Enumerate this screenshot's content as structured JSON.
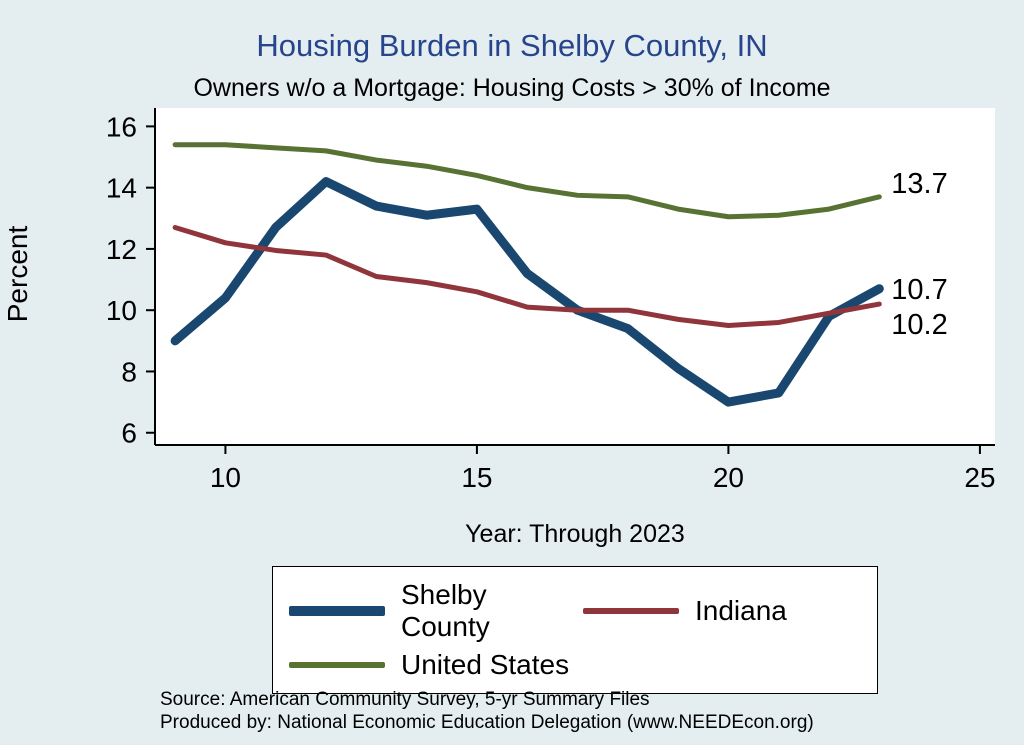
{
  "chart_data": {
    "type": "line",
    "title": "Housing Burden in Shelby County, IN",
    "subtitle": "Owners w/o a Mortgage: Housing Costs > 30% of Income",
    "xlabel": "Year: Through 2023",
    "ylabel": "Percent",
    "x": [
      9,
      10,
      11,
      12,
      13,
      14,
      15,
      16,
      17,
      18,
      19,
      20,
      21,
      22,
      23
    ],
    "series": [
      {
        "name": "Shelby County",
        "color": "#1a476f",
        "width": 9,
        "values": [
          9.0,
          10.4,
          12.7,
          14.2,
          13.4,
          13.1,
          13.3,
          11.2,
          10.0,
          9.4,
          8.1,
          7.0,
          7.3,
          9.8,
          10.7
        ],
        "end_label": "10.7"
      },
      {
        "name": "Indiana",
        "color": "#90353b",
        "width": 5,
        "values": [
          12.7,
          12.2,
          11.95,
          11.8,
          11.1,
          10.9,
          10.6,
          10.1,
          10.0,
          10.0,
          9.7,
          9.5,
          9.6,
          9.9,
          10.2
        ],
        "end_label": "10.2"
      },
      {
        "name": "United States",
        "color": "#577232",
        "width": 5,
        "values": [
          15.4,
          15.4,
          15.3,
          15.2,
          14.9,
          14.7,
          14.4,
          14.0,
          13.75,
          13.7,
          13.3,
          13.05,
          13.1,
          13.3,
          13.7
        ],
        "end_label": "13.7"
      }
    ],
    "xlim": [
      8.6,
      25.3
    ],
    "ylim": [
      5.6,
      16.6
    ],
    "xticks": [
      10,
      15,
      20,
      25
    ],
    "yticks": [
      6,
      8,
      10,
      12,
      14,
      16
    ],
    "grid": false,
    "legend_position": "bottom"
  },
  "footer": {
    "source": "Source: American Community Survey, 5-yr Summary Files",
    "produced_by": "Produced by: National Economic Education Delegation (www.NEEDEcon.org)"
  },
  "colors": {
    "background": "#e4eef1",
    "plot_background": "#ffffff",
    "title": "#26458c",
    "axis": "#000000"
  }
}
